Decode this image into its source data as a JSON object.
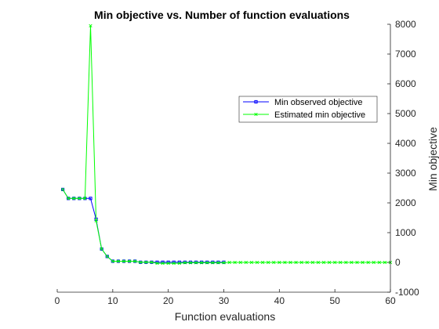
{
  "chart_data": {
    "type": "line",
    "title": "Min objective vs. Number of function evaluations",
    "xlabel": "Function evaluations",
    "ylabel": "Min objective",
    "xlim": [
      0,
      60
    ],
    "ylim": [
      -1000,
      8000
    ],
    "xticks": [
      "0",
      "10",
      "20",
      "30",
      "40",
      "50",
      "60"
    ],
    "yticks": [
      "-1000",
      "0",
      "1000",
      "2000",
      "3000",
      "4000",
      "5000",
      "6000",
      "7000",
      "8000"
    ],
    "y_axis_side": "right",
    "grid": false,
    "legend_position": "top-right",
    "series": [
      {
        "name": "Min observed objective",
        "color": "#0000ff",
        "marker": "square",
        "x": [
          1,
          2,
          3,
          4,
          5,
          6,
          7,
          8,
          9,
          10,
          11,
          12,
          13,
          14,
          15,
          16,
          17,
          18,
          19,
          20,
          21,
          22,
          23,
          24,
          25,
          26,
          27,
          28,
          29,
          30
        ],
        "y": [
          2450,
          2150,
          2150,
          2150,
          2150,
          2150,
          1450,
          450,
          200,
          40,
          40,
          40,
          40,
          40,
          5,
          5,
          5,
          5,
          5,
          5,
          5,
          5,
          5,
          5,
          5,
          5,
          5,
          5,
          5,
          5
        ]
      },
      {
        "name": "Estimated min objective",
        "color": "#00ff00",
        "marker": "x",
        "x": [
          1,
          2,
          3,
          4,
          5,
          6,
          7,
          8,
          9,
          10,
          11,
          12,
          13,
          14,
          15,
          16,
          17,
          18,
          19,
          20,
          21,
          22,
          23,
          24,
          25,
          26,
          27,
          28,
          29,
          30,
          31,
          32,
          33,
          34,
          35,
          36,
          37,
          38,
          39,
          40,
          41,
          42,
          43,
          44,
          45,
          46,
          47,
          48,
          49,
          50,
          51,
          52,
          53,
          54,
          55,
          56,
          57,
          58,
          59,
          60
        ],
        "y": [
          2450,
          2150,
          2150,
          2150,
          2150,
          7950,
          1400,
          450,
          200,
          40,
          40,
          40,
          40,
          40,
          5,
          5,
          5,
          -30,
          -30,
          -30,
          -30,
          -30,
          -10,
          -10,
          -10,
          -10,
          -10,
          -10,
          -10,
          -10,
          0,
          0,
          0,
          0,
          0,
          0,
          0,
          0,
          0,
          0,
          0,
          0,
          0,
          0,
          0,
          0,
          0,
          0,
          0,
          0,
          0,
          0,
          0,
          0,
          0,
          0,
          0,
          0,
          0,
          0
        ]
      }
    ]
  }
}
